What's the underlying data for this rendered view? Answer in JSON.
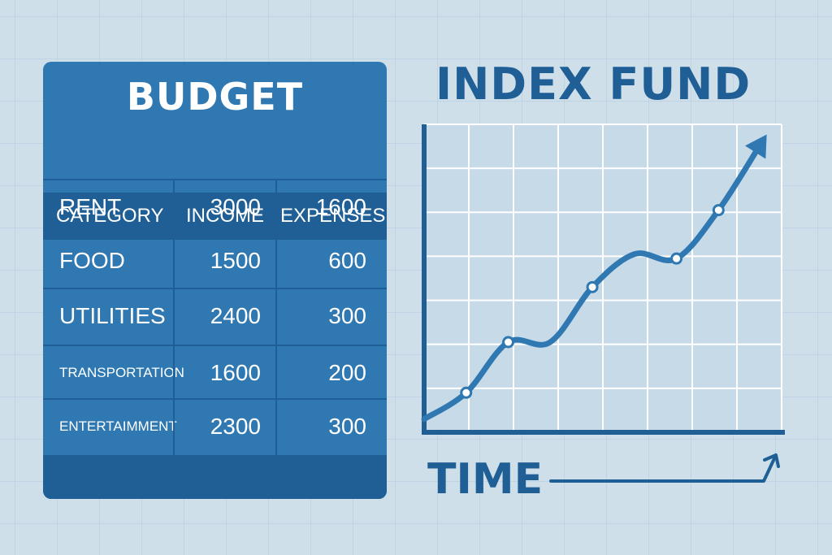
{
  "budget": {
    "title": "BUDGET",
    "headers": [
      "CATEGORY",
      "INCOME",
      "EXPENSES"
    ],
    "rows": [
      {
        "category": "RENT",
        "income": "3000",
        "expenses": "1600"
      },
      {
        "category": "FOOD",
        "income": "1500",
        "expenses": "600"
      },
      {
        "category": "UTILITIES",
        "income": "2400",
        "expenses": "300"
      },
      {
        "category": "TRANSPORTATION",
        "income": "1600",
        "expenses": "200"
      },
      {
        "category": "ENTERTAIMMENT",
        "income": "2300",
        "expenses": "300"
      }
    ]
  },
  "chart_data": {
    "type": "line",
    "title": "INDEX FUND",
    "xlabel": "TIME",
    "ylabel": "",
    "x": [
      0,
      1,
      2,
      3,
      4,
      5,
      6,
      7,
      8
    ],
    "values": [
      0.3,
      0.9,
      2.05,
      2.05,
      3.3,
      4.05,
      3.95,
      5.05,
      6.55
    ],
    "marked_points": [
      1,
      2,
      4,
      6,
      7
    ],
    "xlim": [
      0,
      8.5
    ],
    "ylim": [
      0,
      7
    ],
    "grid": true,
    "arrowhead": true,
    "colors": {
      "line": "#2f78b1",
      "axis": "#1f5f96",
      "grid": "#ffffff",
      "plot_bg": "#c7dae8",
      "marker_fill": "#ffffff"
    }
  },
  "colors": {
    "page_bg": "#cfdfea",
    "card_bg": "#2f78b1",
    "card_dark": "#1f5f96",
    "text_light": "#ffffff",
    "accent": "#1f5f96"
  }
}
